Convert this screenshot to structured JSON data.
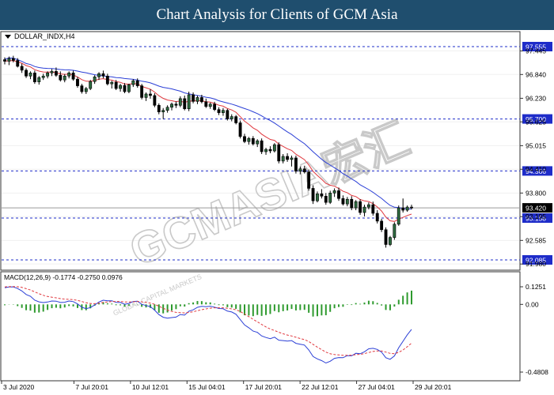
{
  "title": "Chart Analysis for Clients of GCM Asia",
  "symbol": "DOLLAR_INDX,H4",
  "watermark": "GCMASIA宏汇",
  "watermark_sub": "GLOBAL CAPITAL MARKETS",
  "colors": {
    "bull": "#2d6a3f",
    "bear": "#000000",
    "ma_fast": "#e0383e",
    "ma_slow": "#2b3fd6",
    "level_line": "#1e2cc9",
    "level_box": "#1e2cc9",
    "macd_hist": "#2e9a2e",
    "macd_line": "#2b3fd6",
    "macd_signal": "#e0383e"
  },
  "chart_data": [
    {
      "type": "candlestick",
      "symbol": "DOLLAR_INDX",
      "timeframe": "H4",
      "ylim": [
        92.085,
        97.555
      ],
      "y_ticks": [
        "97.445",
        "96.840",
        "96.230",
        "95.625",
        "95.015",
        "94.410",
        "93.800",
        "93.195",
        "92.585",
        "91.980"
      ],
      "x_labels": [
        "3 Jul 2020",
        "7 Jul 20:01",
        "10 Jul 12:01",
        "15 Jul 04:01",
        "17 Jul 20:01",
        "22 Jul 12:01",
        "27 Jul 04:01",
        "29 Jul 20:01"
      ],
      "levels": [
        "97.555",
        "95.700",
        "94.366",
        "93.158",
        "92.085"
      ],
      "current_price": "93.420",
      "candles": [
        [
          97.22,
          97.28,
          97.1,
          97.18
        ],
        [
          97.18,
          97.3,
          97.08,
          97.25
        ],
        [
          97.25,
          97.32,
          97.15,
          97.2
        ],
        [
          97.2,
          97.26,
          97.02,
          97.05
        ],
        [
          97.05,
          97.12,
          96.88,
          96.95
        ],
        [
          96.95,
          97.0,
          96.75,
          96.8
        ],
        [
          96.8,
          96.92,
          96.72,
          96.88
        ],
        [
          96.88,
          96.94,
          96.6,
          96.65
        ],
        [
          96.65,
          96.8,
          96.58,
          96.76
        ],
        [
          96.76,
          96.86,
          96.7,
          96.8
        ],
        [
          96.8,
          96.92,
          96.74,
          96.88
        ],
        [
          96.88,
          96.98,
          96.8,
          96.92
        ],
        [
          96.92,
          97.02,
          96.78,
          96.82
        ],
        [
          96.82,
          96.92,
          96.66,
          96.7
        ],
        [
          96.7,
          96.85,
          96.64,
          96.8
        ],
        [
          96.8,
          96.92,
          96.74,
          96.88
        ],
        [
          96.88,
          96.94,
          96.68,
          96.72
        ],
        [
          96.72,
          96.78,
          96.5,
          96.55
        ],
        [
          96.55,
          96.6,
          96.35,
          96.4
        ],
        [
          96.4,
          96.52,
          96.34,
          96.48
        ],
        [
          96.48,
          96.7,
          96.44,
          96.66
        ],
        [
          96.66,
          96.82,
          96.6,
          96.78
        ],
        [
          96.78,
          96.9,
          96.7,
          96.86
        ],
        [
          96.86,
          96.94,
          96.74,
          96.8
        ],
        [
          96.8,
          96.86,
          96.56,
          96.6
        ],
        [
          96.6,
          96.68,
          96.48,
          96.64
        ],
        [
          96.64,
          96.7,
          96.44,
          96.48
        ],
        [
          96.48,
          96.6,
          96.4,
          96.56
        ],
        [
          96.56,
          96.62,
          96.36,
          96.4
        ],
        [
          96.4,
          96.6,
          96.36,
          96.58
        ],
        [
          96.58,
          96.72,
          96.52,
          96.68
        ],
        [
          96.68,
          96.74,
          96.5,
          96.55
        ],
        [
          96.55,
          96.6,
          96.2,
          96.25
        ],
        [
          96.25,
          96.38,
          96.16,
          96.34
        ],
        [
          96.34,
          96.46,
          96.22,
          96.3
        ],
        [
          96.3,
          96.36,
          96.0,
          96.05
        ],
        [
          96.05,
          96.1,
          95.82,
          95.88
        ],
        [
          95.88,
          95.98,
          95.7,
          95.92
        ],
        [
          95.92,
          96.05,
          95.86,
          96.0
        ],
        [
          96.0,
          96.12,
          95.92,
          96.08
        ],
        [
          96.08,
          96.15,
          95.98,
          96.05
        ],
        [
          96.05,
          96.28,
          96.0,
          96.22
        ],
        [
          96.22,
          96.3,
          95.92,
          95.96
        ],
        [
          95.96,
          96.4,
          95.9,
          96.32
        ],
        [
          96.32,
          96.38,
          96.1,
          96.15
        ],
        [
          96.15,
          96.3,
          96.08,
          96.25
        ],
        [
          96.25,
          96.32,
          96.1,
          96.14
        ],
        [
          96.14,
          96.22,
          95.98,
          96.02
        ],
        [
          96.02,
          96.12,
          95.96,
          96.08
        ],
        [
          96.08,
          96.14,
          95.9,
          95.94
        ],
        [
          95.94,
          96.0,
          95.8,
          95.86
        ],
        [
          95.86,
          95.98,
          95.78,
          95.92
        ],
        [
          95.92,
          95.96,
          95.66,
          95.7
        ],
        [
          95.7,
          95.82,
          95.64,
          95.76
        ],
        [
          95.76,
          95.8,
          95.56,
          95.6
        ],
        [
          95.6,
          95.66,
          95.2,
          95.25
        ],
        [
          95.25,
          95.32,
          95.08,
          95.12
        ],
        [
          95.12,
          95.24,
          95.04,
          95.2
        ],
        [
          95.2,
          95.26,
          95.02,
          95.06
        ],
        [
          95.06,
          95.18,
          94.98,
          95.14
        ],
        [
          95.14,
          95.2,
          94.8,
          94.86
        ],
        [
          94.86,
          94.96,
          94.78,
          94.92
        ],
        [
          94.92,
          95.0,
          94.82,
          94.88
        ],
        [
          94.88,
          95.08,
          94.84,
          95.04
        ],
        [
          95.04,
          95.1,
          94.56,
          94.62
        ],
        [
          94.62,
          94.8,
          94.56,
          94.74
        ],
        [
          94.74,
          94.82,
          94.6,
          94.66
        ],
        [
          94.66,
          94.76,
          94.48,
          94.7
        ],
        [
          94.7,
          94.76,
          94.3,
          94.36
        ],
        [
          94.36,
          94.48,
          94.28,
          94.42
        ],
        [
          94.42,
          94.5,
          94.3,
          94.34
        ],
        [
          94.34,
          94.4,
          93.86,
          93.92
        ],
        [
          93.92,
          94.0,
          93.52,
          93.6
        ],
        [
          93.6,
          93.84,
          93.56,
          93.78
        ],
        [
          93.78,
          93.9,
          93.66,
          93.72
        ],
        [
          93.72,
          93.8,
          93.5,
          93.56
        ],
        [
          93.56,
          93.86,
          93.52,
          93.8
        ],
        [
          93.8,
          93.92,
          93.7,
          93.86
        ],
        [
          93.86,
          93.94,
          93.6,
          93.66
        ],
        [
          93.66,
          93.74,
          93.48,
          93.52
        ],
        [
          93.52,
          93.7,
          93.46,
          93.64
        ],
        [
          93.64,
          93.72,
          93.36,
          93.42
        ],
        [
          93.42,
          93.62,
          93.36,
          93.58
        ],
        [
          93.58,
          93.64,
          93.24,
          93.3
        ],
        [
          93.3,
          93.5,
          93.2,
          93.44
        ],
        [
          93.44,
          93.56,
          93.38,
          93.5
        ],
        [
          93.5,
          93.58,
          93.22,
          93.28
        ],
        [
          93.28,
          93.36,
          93.02,
          93.08
        ],
        [
          93.08,
          93.14,
          92.8,
          92.86
        ],
        [
          92.86,
          92.92,
          92.4,
          92.48
        ],
        [
          92.48,
          92.7,
          92.44,
          92.66
        ],
        [
          92.66,
          93.05,
          92.6,
          93.0
        ],
        [
          93.0,
          93.48,
          92.96,
          93.42
        ],
        [
          93.42,
          93.66,
          93.3,
          93.36
        ],
        [
          93.36,
          93.48,
          93.32,
          93.44
        ],
        [
          93.44,
          93.5,
          93.38,
          93.42
        ]
      ]
    },
    {
      "type": "macd",
      "label": "MACD(12,26,9) -0.1774 -0.2750 0.0976",
      "params": [
        12,
        26,
        9
      ],
      "macd": -0.1774,
      "signal": -0.275,
      "histogram": 0.0976,
      "ylim": [
        -0.4808,
        0.1251
      ],
      "y_ticks": [
        "0.1251",
        "0.00",
        "-0.4808"
      ]
    }
  ]
}
